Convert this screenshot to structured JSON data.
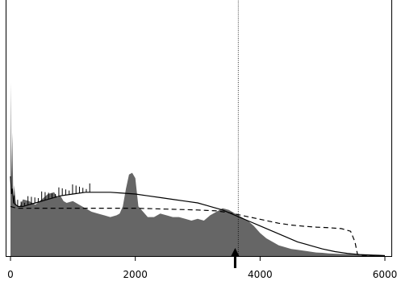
{
  "chart_data": {
    "type": "area",
    "title": "",
    "xlabel": "",
    "ylabel": "",
    "xlim": [
      -50,
      6050
    ],
    "ylim": [
      0,
      1.0
    ],
    "grid": false,
    "legend": "none",
    "x_ticks": [
      0,
      2000,
      4000,
      6000
    ],
    "x_tick_labels": [
      "0",
      "2000",
      "4000",
      "6000"
    ],
    "colors": {
      "area_fill": "#666666",
      "line": "#000000",
      "frame": "#000000",
      "background": "#ffffff"
    },
    "vertical_marker_x": 3650,
    "arrow_marker_x": 3600,
    "series": [
      {
        "style": "filled-area",
        "x": [
          0,
          15,
          30,
          45,
          60,
          80,
          100,
          150,
          200,
          300,
          400,
          500,
          600,
          700,
          750,
          800,
          850,
          900,
          1000,
          1100,
          1200,
          1300,
          1400,
          1500,
          1600,
          1700,
          1750,
          1800,
          1850,
          1900,
          1950,
          2000,
          2050,
          2100,
          2150,
          2200,
          2300,
          2400,
          2500,
          2600,
          2700,
          2800,
          2900,
          3000,
          3100,
          3200,
          3300,
          3400,
          3500,
          3600,
          3700,
          3800,
          3900,
          4000,
          4100,
          4200,
          4300,
          4400,
          4500,
          4600,
          4700,
          4800,
          4900,
          5000,
          5100,
          5200,
          5300,
          5400,
          5500,
          5600,
          5700,
          5800,
          5900,
          6000
        ],
        "y": [
          0.98,
          0.45,
          0.7,
          0.3,
          0.4,
          0.32,
          0.28,
          0.28,
          0.32,
          0.31,
          0.29,
          0.32,
          0.35,
          0.36,
          0.33,
          0.34,
          0.31,
          0.3,
          0.31,
          0.29,
          0.27,
          0.25,
          0.24,
          0.23,
          0.22,
          0.23,
          0.24,
          0.28,
          0.38,
          0.46,
          0.47,
          0.44,
          0.28,
          0.26,
          0.24,
          0.22,
          0.22,
          0.24,
          0.23,
          0.22,
          0.22,
          0.21,
          0.2,
          0.21,
          0.2,
          0.23,
          0.25,
          0.27,
          0.26,
          0.24,
          0.22,
          0.2,
          0.17,
          0.13,
          0.1,
          0.08,
          0.06,
          0.05,
          0.04,
          0.035,
          0.03,
          0.025,
          0.02,
          0.018,
          0.015,
          0.013,
          0.012,
          0.012,
          0.011,
          0.01,
          0.01,
          0.009,
          0.008,
          0.006
        ]
      },
      {
        "style": "solid-line",
        "x": [
          0,
          15,
          30,
          50,
          80,
          120,
          200,
          400,
          600,
          800,
          1000,
          1200,
          1400,
          1600,
          1800,
          2000,
          2200,
          2400,
          2600,
          2800,
          3000,
          3200,
          3400,
          3600,
          3800,
          4000,
          4200,
          4400,
          4600,
          4800,
          5000,
          5200,
          5400,
          5600,
          5800,
          6000
        ],
        "y": [
          0.45,
          0.35,
          0.38,
          0.3,
          0.29,
          0.28,
          0.28,
          0.3,
          0.32,
          0.34,
          0.35,
          0.36,
          0.36,
          0.36,
          0.355,
          0.35,
          0.34,
          0.33,
          0.32,
          0.31,
          0.3,
          0.28,
          0.26,
          0.23,
          0.2,
          0.17,
          0.14,
          0.11,
          0.08,
          0.06,
          0.04,
          0.025,
          0.015,
          0.008,
          0.004,
          0.002
        ]
      },
      {
        "style": "dashed-line",
        "x": [
          0,
          100,
          300,
          500,
          1000,
          1500,
          2000,
          2500,
          3000,
          3300,
          3500,
          3700,
          3900,
          4100,
          4300,
          4500,
          4700,
          4900,
          5100,
          5300,
          5450,
          5520,
          5560,
          5600,
          5800,
          6000
        ],
        "y": [
          0.28,
          0.27,
          0.27,
          0.27,
          0.27,
          0.27,
          0.27,
          0.265,
          0.26,
          0.255,
          0.245,
          0.23,
          0.215,
          0.2,
          0.185,
          0.175,
          0.168,
          0.163,
          0.16,
          0.155,
          0.14,
          0.08,
          0.01,
          0.003,
          0.002,
          0.002
        ]
      }
    ]
  }
}
